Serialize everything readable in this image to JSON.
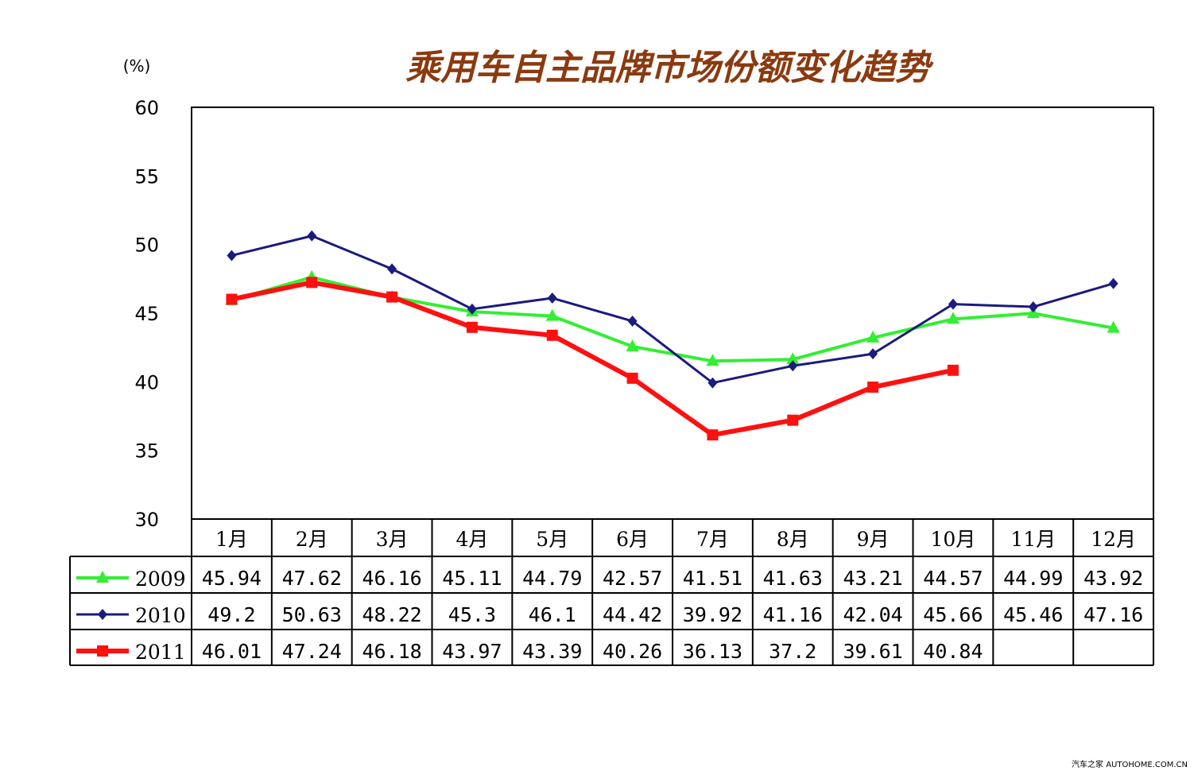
{
  "watermark": "汽车之家 AUTOHOME.COM.CN",
  "colors": {
    "title": "#8B3A0F",
    "2009": "#33EE33",
    "2010": "#1A1A80",
    "2011": "#FF1010"
  },
  "chart_data": {
    "type": "line",
    "title": "乘用车自主品牌市场份额变化趋势",
    "ylabel": "(%)",
    "ylim": [
      30,
      60
    ],
    "yticks": [
      "30",
      "35",
      "40",
      "45",
      "50",
      "55",
      "60"
    ],
    "categories": [
      "1月",
      "2月",
      "3月",
      "4月",
      "5月",
      "6月",
      "7月",
      "8月",
      "9月",
      "10月",
      "11月",
      "12月"
    ],
    "grid": false,
    "legend": "data-table-left",
    "series": [
      {
        "name": "2009",
        "marker": "triangle",
        "color": "#33EE33",
        "values": [
          45.94,
          47.62,
          46.16,
          45.11,
          44.79,
          42.57,
          41.51,
          41.63,
          43.21,
          44.57,
          44.99,
          43.92
        ],
        "labels": [
          "45.94",
          "47.62",
          "46.16",
          "45.11",
          "44.79",
          "42.57",
          "41.51",
          "41.63",
          "43.21",
          "44.57",
          "44.99",
          "43.92"
        ]
      },
      {
        "name": "2010",
        "marker": "diamond",
        "color": "#1A1A80",
        "values": [
          49.2,
          50.63,
          48.22,
          45.3,
          46.1,
          44.42,
          39.92,
          41.16,
          42.04,
          45.66,
          45.46,
          47.16
        ],
        "labels": [
          "49.2",
          "50.63",
          "48.22",
          "45.3",
          "46.1",
          "44.42",
          "39.92",
          "41.16",
          "42.04",
          "45.66",
          "45.46",
          "47.16"
        ]
      },
      {
        "name": "2011",
        "marker": "square",
        "color": "#FF1010",
        "values": [
          46.01,
          47.24,
          46.18,
          43.97,
          43.39,
          40.26,
          36.13,
          37.2,
          39.61,
          40.84,
          null,
          null
        ],
        "labels": [
          "46.01",
          "47.24",
          "46.18",
          "43.97",
          "43.39",
          "40.26",
          "36.13",
          "37.2",
          "39.61",
          "40.84",
          "",
          ""
        ]
      }
    ]
  }
}
